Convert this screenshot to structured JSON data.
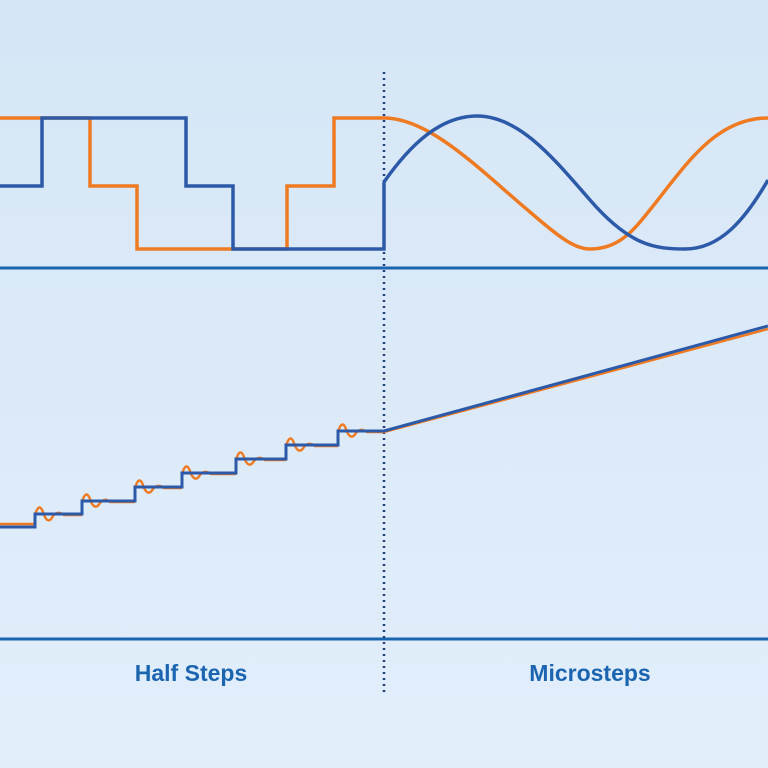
{
  "labels": {
    "left": "Half Steps",
    "right": "Microsteps"
  },
  "colors": {
    "background": "#dce9f7",
    "blue": "#2c5aa8",
    "orange": "#ee7a22",
    "axis": "#1b65b0",
    "label": "#1b65b0"
  }
}
